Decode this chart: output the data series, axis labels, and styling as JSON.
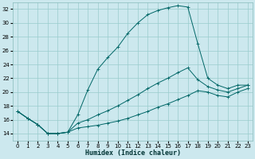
{
  "xlabel": "Humidex (Indice chaleur)",
  "bg_color": "#cce8ee",
  "line_color": "#006666",
  "grid_color": "#99cccc",
  "xlim": [
    -0.5,
    23.5
  ],
  "ylim": [
    13.0,
    33.0
  ],
  "yticks": [
    14,
    16,
    18,
    20,
    22,
    24,
    26,
    28,
    30,
    32
  ],
  "xticks": [
    0,
    1,
    2,
    3,
    4,
    5,
    6,
    7,
    8,
    9,
    10,
    11,
    12,
    13,
    14,
    15,
    16,
    17,
    18,
    19,
    20,
    21,
    22,
    23
  ],
  "curve1_x": [
    0,
    1,
    2,
    3,
    4,
    5,
    6,
    7,
    8,
    9,
    10,
    11,
    12,
    13,
    14,
    15,
    16,
    17,
    18,
    19,
    20,
    21,
    22,
    23
  ],
  "curve1_y": [
    17.2,
    16.2,
    15.3,
    14.0,
    14.0,
    14.2,
    16.7,
    20.3,
    23.3,
    25.0,
    26.5,
    28.5,
    30.0,
    31.2,
    31.8,
    32.2,
    32.5,
    32.3,
    27.0,
    22.0,
    21.0,
    20.5,
    21.0,
    21.0
  ],
  "curve2_x": [
    0,
    1,
    2,
    3,
    4,
    5,
    6,
    7,
    8,
    9,
    10,
    11,
    12,
    13,
    14,
    15,
    16,
    17,
    18,
    19,
    20,
    21,
    22,
    23
  ],
  "curve2_y": [
    17.2,
    16.2,
    15.3,
    14.0,
    14.0,
    14.2,
    15.5,
    16.0,
    16.7,
    17.3,
    18.0,
    18.8,
    19.6,
    20.5,
    21.3,
    22.0,
    22.8,
    23.5,
    21.8,
    20.8,
    20.3,
    20.0,
    20.5,
    21.0
  ],
  "curve3_x": [
    0,
    1,
    2,
    3,
    4,
    5,
    6,
    7,
    8,
    9,
    10,
    11,
    12,
    13,
    14,
    15,
    16,
    17,
    18,
    19,
    20,
    21,
    22,
    23
  ],
  "curve3_y": [
    17.2,
    16.2,
    15.3,
    14.0,
    14.0,
    14.2,
    14.8,
    15.0,
    15.2,
    15.5,
    15.8,
    16.2,
    16.7,
    17.2,
    17.8,
    18.3,
    18.9,
    19.5,
    20.2,
    20.0,
    19.5,
    19.3,
    20.0,
    20.5
  ]
}
